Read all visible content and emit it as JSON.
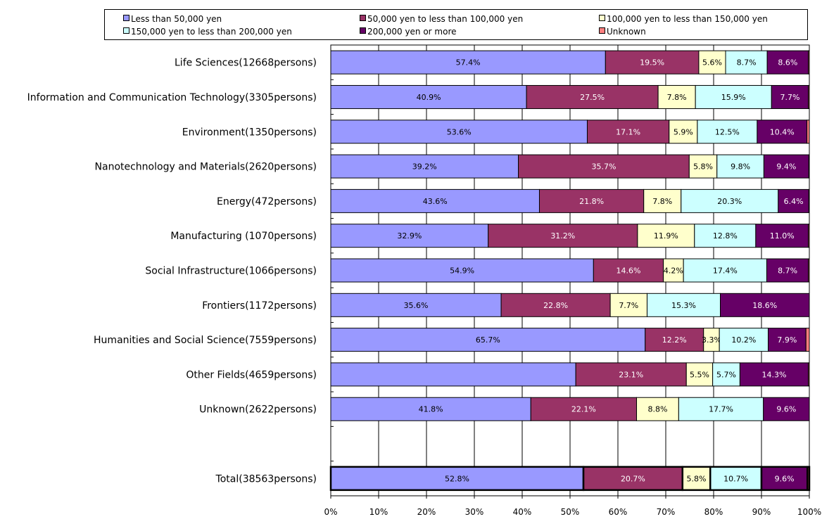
{
  "chart_data": {
    "type": "bar",
    "orientation": "horizontal",
    "stacked": "percent",
    "categories": [
      "Life Sciences(12668persons)",
      "Information and Communication Technology(3305persons)",
      "Environment(1350persons)",
      "Nanotechnology and Materials(2620persons)",
      "Energy(472persons)",
      "Manufacturing (1070persons)",
      "Social Infrastructure(1066persons)",
      "Frontiers(1172persons)",
      "Humanities and Social Science(7559persons)",
      "Other Fields(4659persons)",
      "Unknown(2622persons)",
      "",
      "Total(38563persons)"
    ],
    "series": [
      {
        "name": "Less than 50,000 yen",
        "color": "#9999ff",
        "values": [
          57.4,
          40.9,
          53.6,
          39.2,
          43.6,
          32.9,
          54.9,
          35.6,
          65.7,
          51.2,
          41.8,
          null,
          52.8
        ]
      },
      {
        "name": "50,000 yen to less than 100,000 yen",
        "color": "#993366",
        "values": [
          19.5,
          27.5,
          17.1,
          35.7,
          21.8,
          31.2,
          14.6,
          22.8,
          12.2,
          23.1,
          22.1,
          null,
          20.7
        ]
      },
      {
        "name": "100,000 yen to less than 150,000 yen",
        "color": "#ffffcc",
        "values": [
          5.6,
          7.8,
          5.9,
          5.8,
          7.8,
          11.9,
          4.2,
          7.7,
          3.3,
          5.5,
          8.8,
          null,
          5.8
        ]
      },
      {
        "name": "150,000 yen to less than 200,000 yen",
        "color": "#ccffff",
        "values": [
          8.7,
          15.9,
          12.5,
          9.8,
          20.3,
          12.8,
          17.4,
          15.3,
          10.2,
          5.7,
          17.7,
          null,
          10.7
        ]
      },
      {
        "name": "200,000 yen or more",
        "color": "#660066",
        "values": [
          8.6,
          7.7,
          10.4,
          9.4,
          6.4,
          11.0,
          8.7,
          18.6,
          7.9,
          14.3,
          9.6,
          null,
          9.6
        ]
      },
      {
        "name": "Unknown",
        "color": "#ff8080",
        "values": [
          0.2,
          0.2,
          0.5,
          0.1,
          0.1,
          0.2,
          0.2,
          0.0,
          0.7,
          0.2,
          0.0,
          null,
          0.4
        ]
      }
    ],
    "data_labels": [
      [
        "57.4%",
        "40.9%",
        "53.6%",
        "39.2%",
        "43.6%",
        "32.9%",
        "54.9%",
        "35.6%",
        "65.7%",
        "",
        "41.8%",
        "",
        "52.8%"
      ],
      [
        "19.5%",
        "27.5%",
        "17.1%",
        "35.7%",
        "21.8%",
        "31.2%",
        "14.6%",
        "22.8%",
        "12.2%",
        "23.1%",
        "22.1%",
        "",
        "20.7%"
      ],
      [
        "5.6%",
        "7.8%",
        "5.9%",
        "5.8%",
        "7.8%",
        "11.9%",
        "4.2%",
        "7.7%",
        "3.3%",
        "5.5%",
        "8.8%",
        "",
        "5.8%"
      ],
      [
        "8.7%",
        "15.9%",
        "12.5%",
        "9.8%",
        "20.3%",
        "12.8%",
        "17.4%",
        "15.3%",
        "10.2%",
        "5.7%",
        "17.7%",
        "",
        "10.7%"
      ],
      [
        "8.6%",
        "7.7%",
        "10.4%",
        "9.4%",
        "6.4%",
        "11.0%",
        "8.7%",
        "18.6%",
        "7.9%",
        "14.3%",
        "9.6%",
        "",
        "9.6%"
      ],
      [
        "",
        "",
        "",
        "",
        "",
        "",
        "",
        "",
        "",
        "",
        "",
        "",
        ""
      ]
    ],
    "x_ticks": [
      "0%",
      "10%",
      "20%",
      "30%",
      "40%",
      "50%",
      "60%",
      "70%",
      "80%",
      "90%",
      "100%"
    ],
    "xlim": [
      0,
      100
    ],
    "grid": true,
    "legend_position": "top",
    "highlighted_category": "Total(38563persons)"
  }
}
